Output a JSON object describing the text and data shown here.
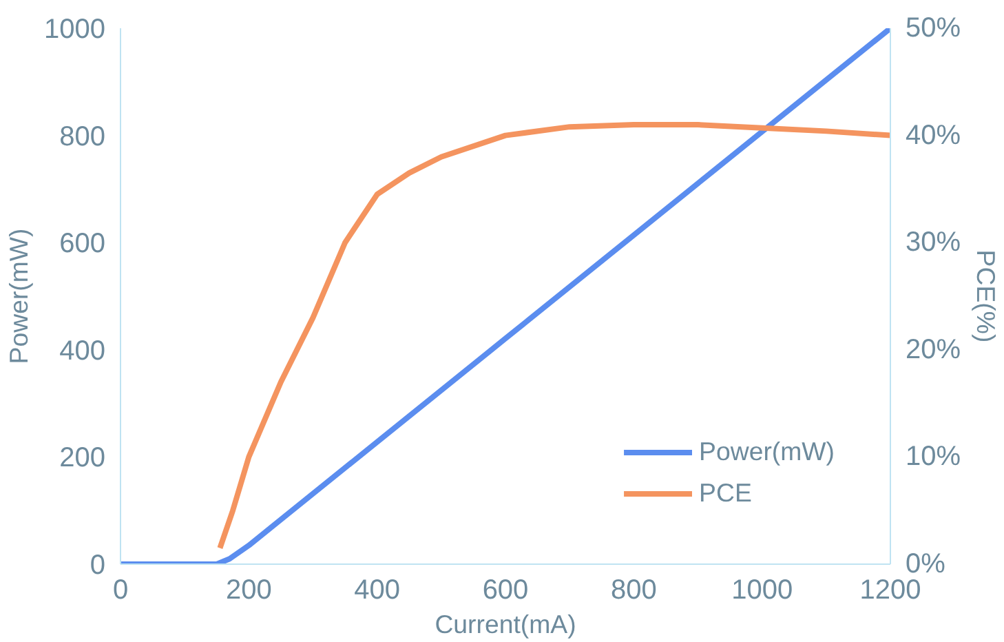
{
  "chart_data": {
    "type": "line",
    "xlabel": "Current(mA)",
    "ylabel": "Power(mW)",
    "y2label": "PCE(%)",
    "xlim": [
      0,
      1200
    ],
    "xticks": [
      0,
      200,
      400,
      600,
      800,
      1000,
      1200
    ],
    "ylim": [
      0,
      1000
    ],
    "yticks": [
      0,
      200,
      400,
      600,
      800,
      1000
    ],
    "y2lim": [
      0,
      50
    ],
    "y2ticks": [
      {
        "value": 0,
        "label": "0%"
      },
      {
        "value": 10,
        "label": "10%"
      },
      {
        "value": 20,
        "label": "20%"
      },
      {
        "value": 30,
        "label": "30%"
      },
      {
        "value": 40,
        "label": "40%"
      },
      {
        "value": 50,
        "label": "50%"
      }
    ],
    "grid": false,
    "legend": "bottom right",
    "line_style": "solid",
    "series": [
      {
        "name": "Power(mW)",
        "color": "#5b8def",
        "x": [
          0,
          150,
          170,
          200,
          400,
          600,
          800,
          1000,
          1200
        ],
        "values": [
          0,
          0,
          10,
          35,
          228,
          421,
          614,
          807,
          1000
        ]
      },
      {
        "name": "PCE",
        "color": "#f4945f",
        "axis": "y2",
        "x": [
          155,
          175,
          200,
          250,
          300,
          350,
          400,
          450,
          500,
          600,
          700,
          800,
          900,
          1000,
          1100,
          1200
        ],
        "values": [
          1.5,
          5,
          10,
          17,
          23,
          30,
          34.5,
          36.5,
          38,
          40,
          40.8,
          41,
          41,
          40.7,
          40.4,
          40
        ]
      }
    ]
  }
}
